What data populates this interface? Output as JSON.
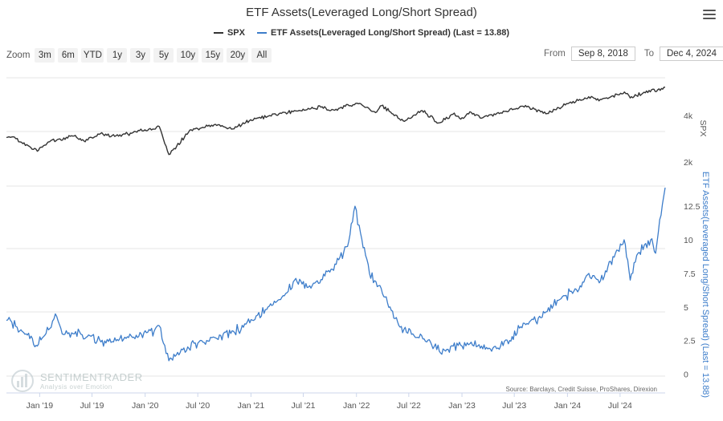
{
  "chart_data": {
    "type": "line",
    "title": "ETF Assets(Leveraged Long/Short Spread)",
    "legend_placement": "top-center",
    "grid": true,
    "x_start": "2018-09-08",
    "x_end": "2024-12-04",
    "x_ticks": [
      {
        "label": "Jan '19",
        "date": "2019-01-01"
      },
      {
        "label": "Jul '19",
        "date": "2019-07-01"
      },
      {
        "label": "Jan '20",
        "date": "2020-01-01"
      },
      {
        "label": "Jul '20",
        "date": "2020-07-01"
      },
      {
        "label": "Jan '21",
        "date": "2021-01-01"
      },
      {
        "label": "Jul '21",
        "date": "2021-07-01"
      },
      {
        "label": "Jan '22",
        "date": "2022-01-01"
      },
      {
        "label": "Jul '22",
        "date": "2022-07-01"
      },
      {
        "label": "Jan '23",
        "date": "2023-01-01"
      },
      {
        "label": "Jul '23",
        "date": "2023-07-01"
      },
      {
        "label": "Jan '24",
        "date": "2024-01-01"
      },
      {
        "label": "Jul '24",
        "date": "2024-07-01"
      }
    ],
    "series": [
      {
        "name": "SPX",
        "color": "#333333",
        "axis": "spx",
        "points": [
          [
            "2018-09-08",
            2880
          ],
          [
            "2018-10-01",
            2910
          ],
          [
            "2018-10-25",
            2700
          ],
          [
            "2018-12-24",
            2350
          ],
          [
            "2019-01-31",
            2700
          ],
          [
            "2019-04-30",
            2945
          ],
          [
            "2019-06-03",
            2740
          ],
          [
            "2019-07-26",
            3020
          ],
          [
            "2019-10-01",
            2940
          ],
          [
            "2019-12-31",
            3230
          ],
          [
            "2020-02-19",
            3386
          ],
          [
            "2020-03-23",
            2237
          ],
          [
            "2020-06-08",
            3232
          ],
          [
            "2020-08-31",
            3500
          ],
          [
            "2020-10-30",
            3270
          ],
          [
            "2020-12-31",
            3756
          ],
          [
            "2021-04-30",
            4180
          ],
          [
            "2021-08-31",
            4520
          ],
          [
            "2021-10-04",
            4300
          ],
          [
            "2022-01-03",
            4796
          ],
          [
            "2022-03-08",
            4170
          ],
          [
            "2022-03-29",
            4630
          ],
          [
            "2022-06-16",
            3666
          ],
          [
            "2022-08-16",
            4305
          ],
          [
            "2022-10-12",
            3577
          ],
          [
            "2022-12-01",
            4076
          ],
          [
            "2022-12-28",
            3783
          ],
          [
            "2023-02-02",
            4180
          ],
          [
            "2023-03-13",
            3855
          ],
          [
            "2023-07-31",
            4588
          ],
          [
            "2023-10-27",
            4117
          ],
          [
            "2023-12-29",
            4770
          ],
          [
            "2024-03-28",
            5254
          ],
          [
            "2024-04-19",
            4967
          ],
          [
            "2024-07-16",
            5667
          ],
          [
            "2024-08-05",
            5186
          ],
          [
            "2024-10-18",
            5864
          ],
          [
            "2024-11-04",
            5712
          ],
          [
            "2024-12-04",
            6086
          ]
        ]
      },
      {
        "name": "ETF Assets(Leveraged Long/Short Spread)",
        "legend_suffix": " (Last = 13.88)",
        "color": "#3d7dca",
        "axis": "spread",
        "last_value": 13.88,
        "points": [
          [
            "2018-09-08",
            4.0
          ],
          [
            "2018-10-15",
            3.5
          ],
          [
            "2018-11-15",
            3.0
          ],
          [
            "2018-12-24",
            2.1
          ],
          [
            "2019-01-10",
            2.7
          ],
          [
            "2019-02-05",
            3.4
          ],
          [
            "2019-03-01",
            4.3
          ],
          [
            "2019-03-20",
            3.0
          ],
          [
            "2019-05-01",
            3.0
          ],
          [
            "2019-06-15",
            2.8
          ],
          [
            "2019-08-01",
            2.4
          ],
          [
            "2019-10-01",
            2.5
          ],
          [
            "2019-12-01",
            2.9
          ],
          [
            "2020-02-01",
            3.2
          ],
          [
            "2020-02-19",
            3.6
          ],
          [
            "2020-03-23",
            1.0
          ],
          [
            "2020-05-01",
            1.6
          ],
          [
            "2020-07-01",
            2.3
          ],
          [
            "2020-09-01",
            2.7
          ],
          [
            "2020-11-01",
            3.2
          ],
          [
            "2021-01-10",
            4.0
          ],
          [
            "2021-03-01",
            5.0
          ],
          [
            "2021-05-01",
            6.0
          ],
          [
            "2021-06-01",
            7.0
          ],
          [
            "2021-08-01",
            6.6
          ],
          [
            "2021-10-01",
            7.6
          ],
          [
            "2021-12-01",
            9.5
          ],
          [
            "2021-12-27",
            12.5
          ],
          [
            "2022-01-15",
            10.5
          ],
          [
            "2022-02-15",
            7.5
          ],
          [
            "2022-04-01",
            6.0
          ],
          [
            "2022-06-01",
            3.5
          ],
          [
            "2022-07-15",
            3.0
          ],
          [
            "2022-09-01",
            2.4
          ],
          [
            "2022-11-01",
            1.8
          ],
          [
            "2023-01-01",
            2.1
          ],
          [
            "2023-03-01",
            2.2
          ],
          [
            "2023-05-01",
            1.9
          ],
          [
            "2023-06-15",
            2.5
          ],
          [
            "2023-08-01",
            3.8
          ],
          [
            "2023-10-01",
            4.2
          ],
          [
            "2023-12-01",
            5.5
          ],
          [
            "2024-02-01",
            6.3
          ],
          [
            "2024-03-15",
            7.5
          ],
          [
            "2024-04-20",
            6.8
          ],
          [
            "2024-06-15",
            9.0
          ],
          [
            "2024-07-15",
            10.0
          ],
          [
            "2024-08-05",
            7.0
          ],
          [
            "2024-09-01",
            9.0
          ],
          [
            "2024-10-15",
            10.0
          ],
          [
            "2024-11-01",
            9.0
          ],
          [
            "2024-11-15",
            11.5
          ],
          [
            "2024-12-04",
            13.88
          ]
        ]
      }
    ],
    "axes": {
      "spx": {
        "label": "SPX",
        "scale": "log",
        "range": [
          1400,
          7000
        ],
        "ticks": [
          {
            "value": 2000,
            "label": "2k"
          },
          {
            "value": 4000,
            "label": "4k"
          }
        ]
      },
      "spread": {
        "label": "ETF Assets(Leveraged Long/Short Spread) (Last = 13.88)",
        "range": [
          -0.2,
          14
        ],
        "ticks": [
          {
            "value": 0,
            "label": "0"
          },
          {
            "value": 2.5,
            "label": "2.5"
          },
          {
            "value": 5,
            "label": "5"
          },
          {
            "value": 7.5,
            "label": "7.5"
          },
          {
            "value": 10,
            "label": "10"
          },
          {
            "value": 12.5,
            "label": "12.5"
          }
        ]
      }
    },
    "source": "Source: Barclays, Credit Suisse, ProShares, Direxion"
  },
  "ui": {
    "zoom_label": "Zoom",
    "zoom_buttons": [
      "3m",
      "6m",
      "YTD",
      "1y",
      "3y",
      "5y",
      "10y",
      "15y",
      "20y",
      "All"
    ],
    "from_label": "From",
    "from_value": "Sep 8, 2018",
    "to_label": "To",
    "to_value": "Dec 4, 2024",
    "menu_icon": "hamburger-menu-icon"
  },
  "watermark": {
    "name": "SENTIMENTRADER",
    "tagline": "Analysis over Emotion",
    "icon": "bar-chart-logo-icon"
  }
}
